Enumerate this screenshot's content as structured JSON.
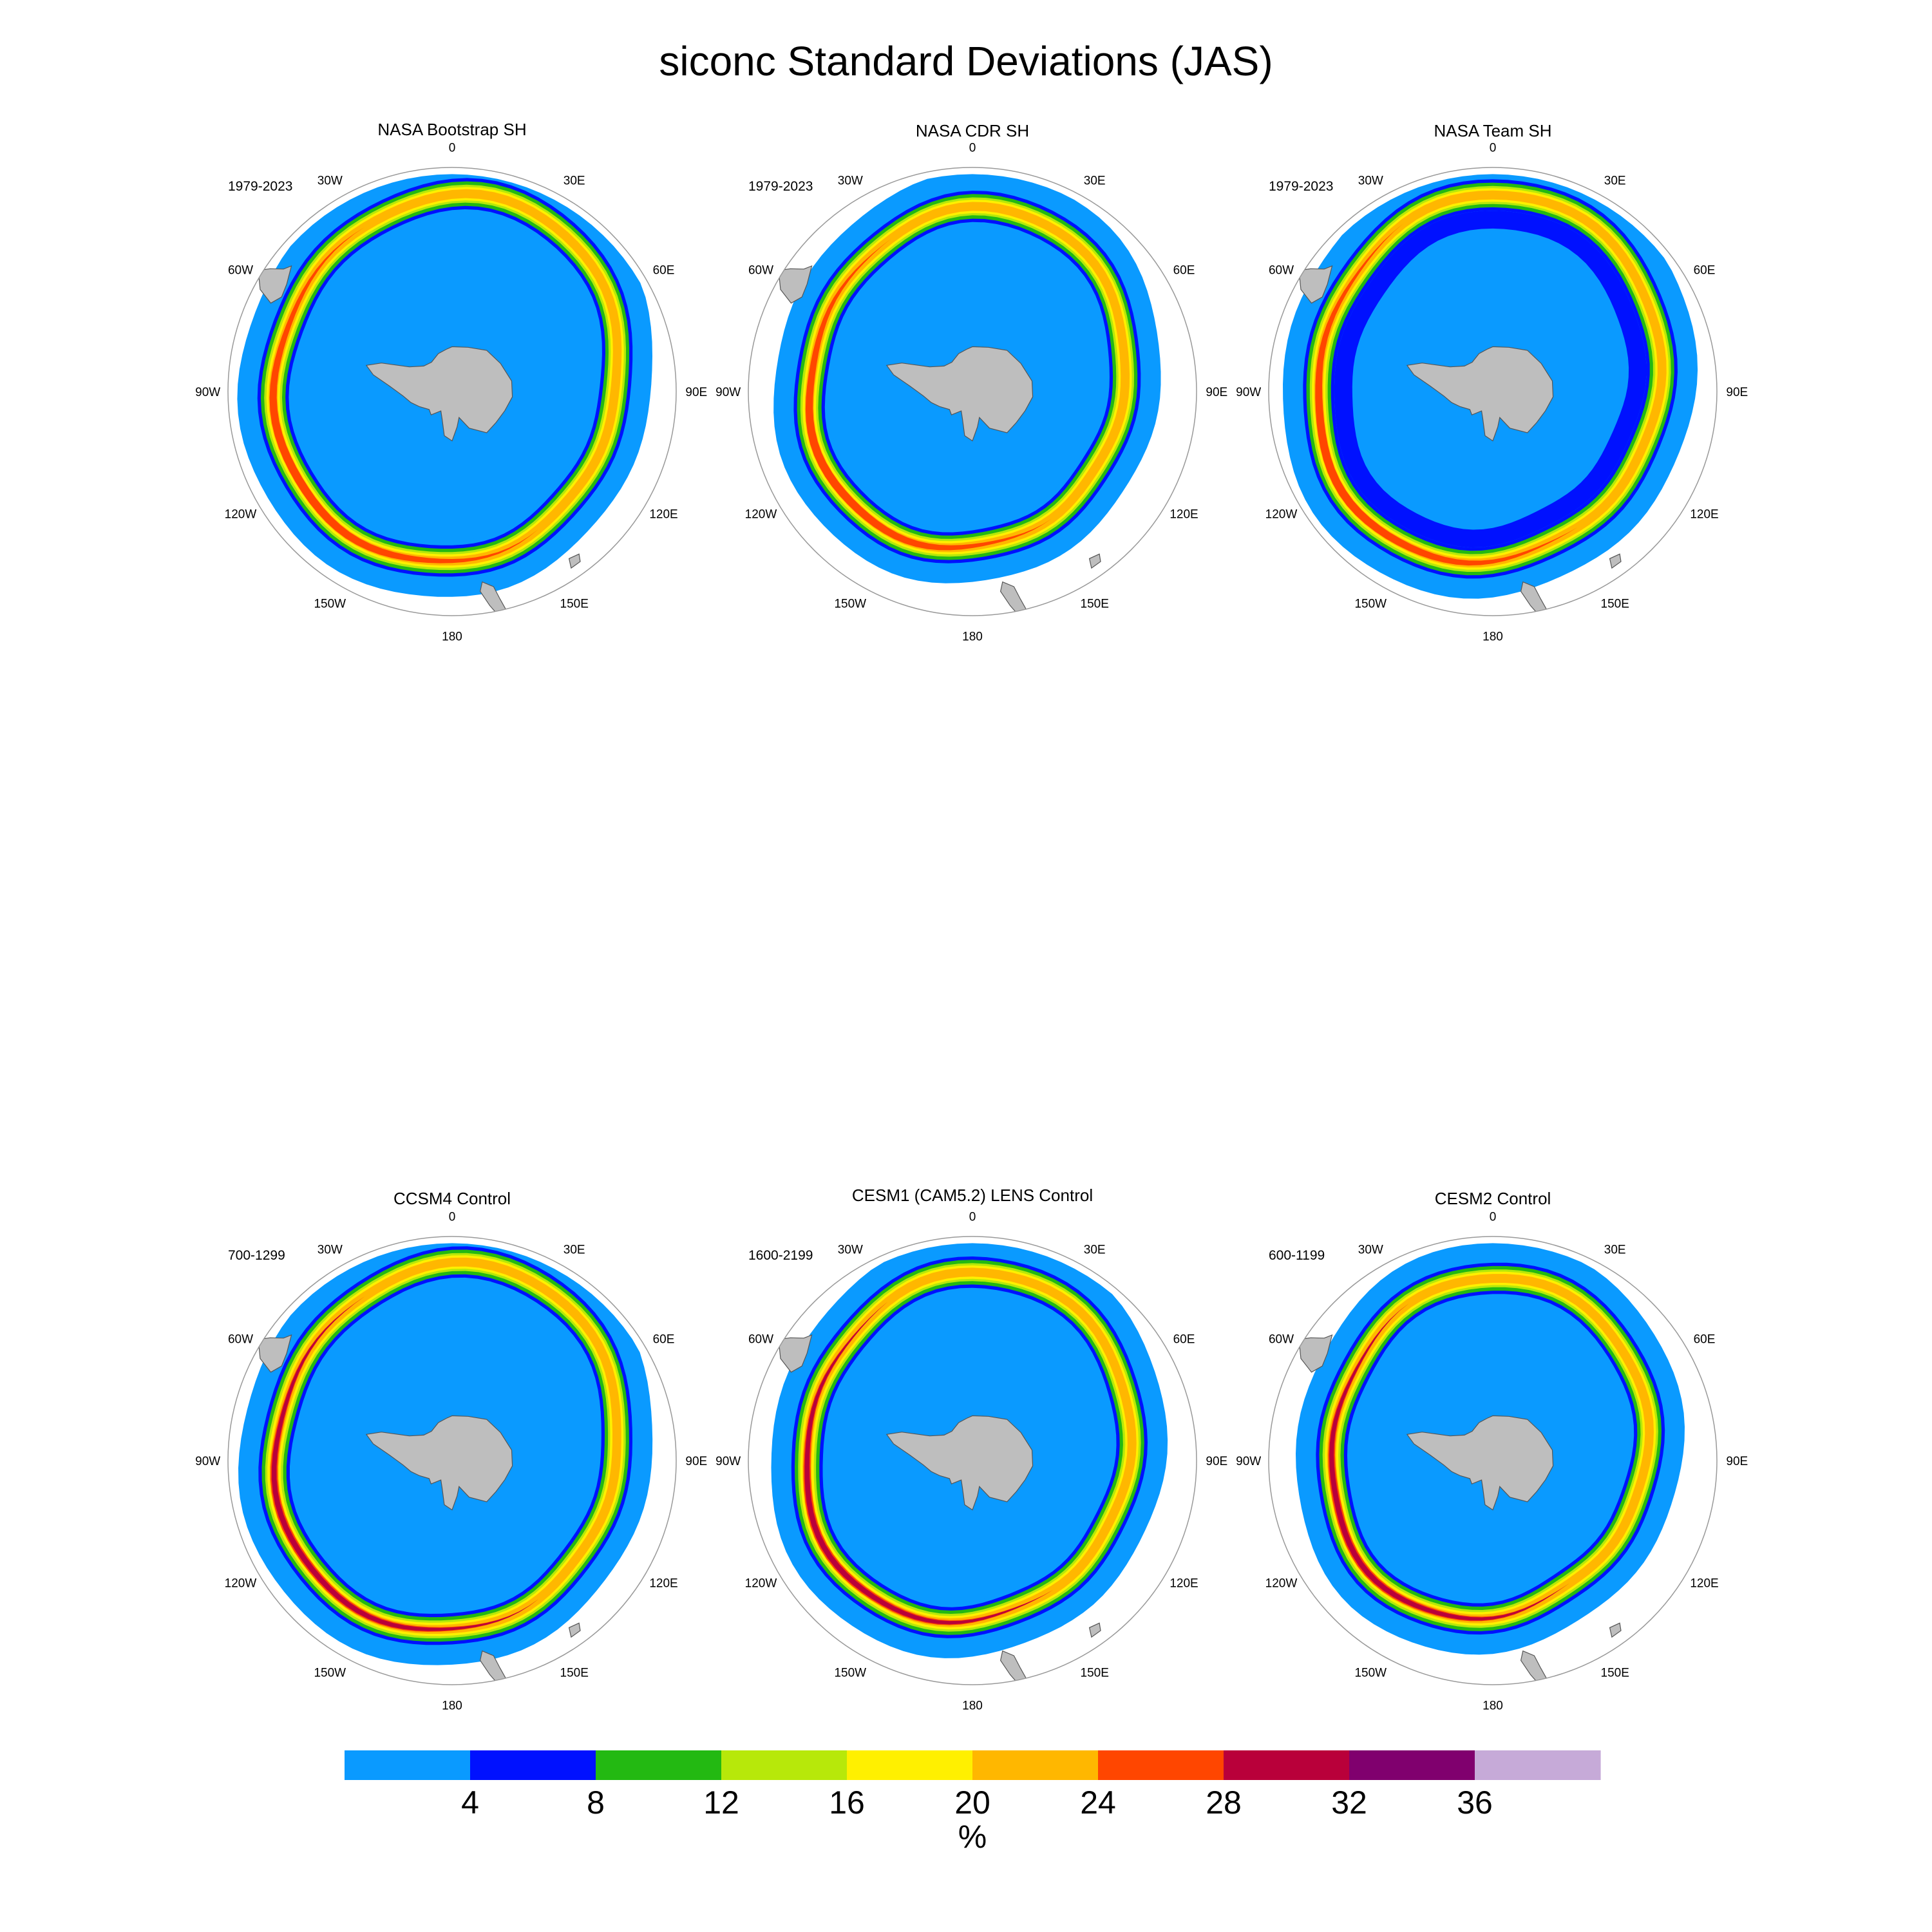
{
  "title": "siconc Standard Deviations (JAS)",
  "panels": [
    {
      "title": "NASA Bootstrap SH",
      "period": "1979-2023"
    },
    {
      "title": "NASA CDR SH",
      "period": "1979-2023"
    },
    {
      "title": "NASA Team SH",
      "period": "1979-2023"
    },
    {
      "title": "CCSM4 Control",
      "period": "700-1299"
    },
    {
      "title": "CESM1 (CAM5.2) LENS Control",
      "period": "1600-2199"
    },
    {
      "title": "CESM2 Control",
      "period": "600-1199"
    }
  ],
  "longitude_labels": [
    "0",
    "30E",
    "60E",
    "90E",
    "120E",
    "150E",
    "180",
    "150W",
    "120W",
    "90W",
    "60W",
    "30W"
  ],
  "colorbar": {
    "unit": "%",
    "ticks": [
      "4",
      "8",
      "12",
      "16",
      "20",
      "24",
      "28",
      "32",
      "36"
    ],
    "colors": [
      "#0a9aff",
      "#0011ff",
      "#23b912",
      "#b7e80a",
      "#fff000",
      "#ffb700",
      "#ff4600",
      "#b9003a",
      "#80006e",
      "#c6aad8"
    ]
  },
  "map_colors": {
    "land": "#bebebe",
    "land_outline": "#555555",
    "circle": "#999999"
  }
}
